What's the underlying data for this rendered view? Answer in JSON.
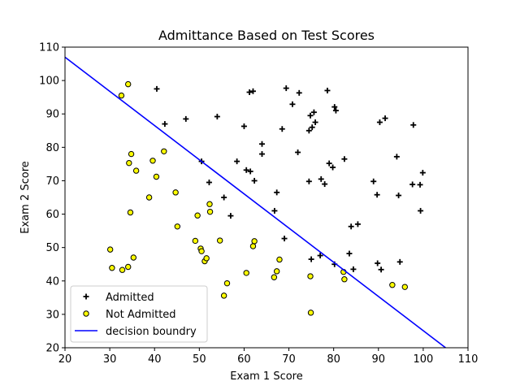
{
  "chart_data": {
    "type": "scatter",
    "title": "Admittance Based on Test Scores",
    "xlabel": "Exam 1 Score",
    "ylabel": "Exam 2 Score",
    "xlim": [
      20,
      110
    ],
    "ylim": [
      20,
      110
    ],
    "xticks": [
      20,
      30,
      40,
      50,
      60,
      70,
      80,
      90,
      100,
      110
    ],
    "yticks": [
      20,
      30,
      40,
      50,
      60,
      70,
      80,
      90,
      100,
      110
    ],
    "grid": false,
    "legend_position": "lower-left",
    "series": [
      {
        "name": "Admitted",
        "marker": "plus",
        "color": "#000000",
        "points": [
          [
            40.5,
            97.5
          ],
          [
            42.3,
            87.0
          ],
          [
            47.0,
            88.5
          ],
          [
            50.5,
            75.8
          ],
          [
            52.2,
            69.5
          ],
          [
            54.0,
            89.2
          ],
          [
            55.5,
            65.0
          ],
          [
            57.0,
            59.5
          ],
          [
            58.4,
            75.8
          ],
          [
            60.0,
            86.3
          ],
          [
            60.5,
            73.2
          ],
          [
            61.2,
            96.5
          ],
          [
            61.4,
            72.8
          ],
          [
            62.0,
            96.8
          ],
          [
            62.3,
            70.0
          ],
          [
            64.0,
            81.0
          ],
          [
            64.0,
            78.0
          ],
          [
            66.8,
            61.0
          ],
          [
            67.3,
            66.5
          ],
          [
            68.5,
            85.5
          ],
          [
            69.0,
            52.7
          ],
          [
            69.4,
            97.7
          ],
          [
            70.8,
            92.9
          ],
          [
            72.0,
            78.5
          ],
          [
            72.3,
            96.3
          ],
          [
            74.5,
            69.8
          ],
          [
            74.5,
            85.0
          ],
          [
            74.8,
            89.5
          ],
          [
            75.0,
            46.5
          ],
          [
            75.2,
            86.0
          ],
          [
            75.6,
            90.5
          ],
          [
            75.9,
            87.5
          ],
          [
            77.0,
            47.6
          ],
          [
            77.2,
            70.5
          ],
          [
            78.0,
            69.0
          ],
          [
            78.6,
            97.0
          ],
          [
            79.0,
            75.2
          ],
          [
            79.8,
            74.0
          ],
          [
            80.2,
            45.0
          ],
          [
            80.2,
            92.1
          ],
          [
            80.5,
            91.0
          ],
          [
            82.4,
            76.5
          ],
          [
            83.5,
            48.2
          ],
          [
            83.9,
            56.3
          ],
          [
            84.4,
            43.5
          ],
          [
            85.4,
            57.0
          ],
          [
            88.9,
            69.8
          ],
          [
            89.7,
            65.8
          ],
          [
            89.8,
            45.3
          ],
          [
            90.3,
            87.5
          ],
          [
            90.6,
            43.4
          ],
          [
            91.5,
            88.7
          ],
          [
            94.1,
            77.2
          ],
          [
            94.5,
            65.6
          ],
          [
            94.8,
            45.7
          ],
          [
            97.6,
            68.9
          ],
          [
            97.8,
            86.7
          ],
          [
            99.3,
            68.8
          ],
          [
            99.4,
            61.0
          ],
          [
            99.9,
            72.4
          ]
        ]
      },
      {
        "name": "Not Admitted",
        "marker": "circle",
        "color": "#ffff00",
        "edgecolor": "#000000",
        "points": [
          [
            34.1,
            98.9
          ],
          [
            32.6,
            95.5
          ],
          [
            34.8,
            78.0
          ],
          [
            34.3,
            75.3
          ],
          [
            35.9,
            73.0
          ],
          [
            42.1,
            78.8
          ],
          [
            39.6,
            76.0
          ],
          [
            40.4,
            71.2
          ],
          [
            44.7,
            66.5
          ],
          [
            38.8,
            65.0
          ],
          [
            34.6,
            60.5
          ],
          [
            45.1,
            56.3
          ],
          [
            52.3,
            63.0
          ],
          [
            52.4,
            60.7
          ],
          [
            49.6,
            59.6
          ],
          [
            30.1,
            49.4
          ],
          [
            35.3,
            47.0
          ],
          [
            30.5,
            43.9
          ],
          [
            32.8,
            43.3
          ],
          [
            34.1,
            44.2
          ],
          [
            49.1,
            52.0
          ],
          [
            50.3,
            49.7
          ],
          [
            50.5,
            48.9
          ],
          [
            54.6,
            52.1
          ],
          [
            51.2,
            45.9
          ],
          [
            51.6,
            46.8
          ],
          [
            55.5,
            35.6
          ],
          [
            56.2,
            39.3
          ],
          [
            60.5,
            42.4
          ],
          [
            62.0,
            50.4
          ],
          [
            62.3,
            51.9
          ],
          [
            66.7,
            41.1
          ],
          [
            67.3,
            42.9
          ],
          [
            67.9,
            46.4
          ],
          [
            74.8,
            41.4
          ],
          [
            74.9,
            30.5
          ],
          [
            82.2,
            42.7
          ],
          [
            82.4,
            40.5
          ],
          [
            93.1,
            38.8
          ],
          [
            95.9,
            38.2
          ]
        ]
      },
      {
        "name": "decision boundry",
        "type": "line",
        "color": "#0000ff",
        "points": [
          [
            20,
            107.0
          ],
          [
            105.0,
            20.0
          ]
        ]
      }
    ]
  }
}
